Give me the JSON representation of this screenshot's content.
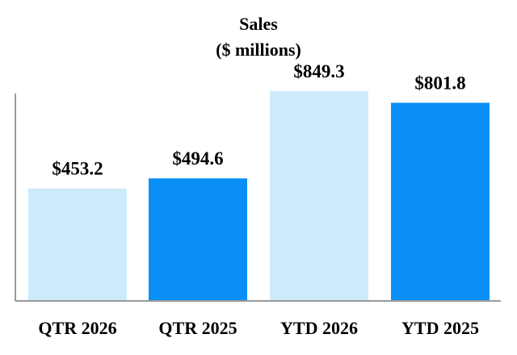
{
  "chart_data": {
    "type": "bar",
    "title": "Sales",
    "subtitle": "($ millions)",
    "categories": [
      "QTR 2026",
      "QTR 2025",
      "YTD 2026",
      "YTD 2025"
    ],
    "values": [
      453.2,
      494.6,
      849.3,
      801.8
    ],
    "value_labels": [
      "$453.2",
      "$494.6",
      "$849.3",
      "$801.8"
    ],
    "bar_colors": [
      "#cdeafb",
      "#0a8ff7",
      "#cdeafb",
      "#0a8ff7"
    ],
    "ylim": [
      0,
      1180
    ],
    "grid": false,
    "xlabel": "",
    "ylabel": ""
  }
}
